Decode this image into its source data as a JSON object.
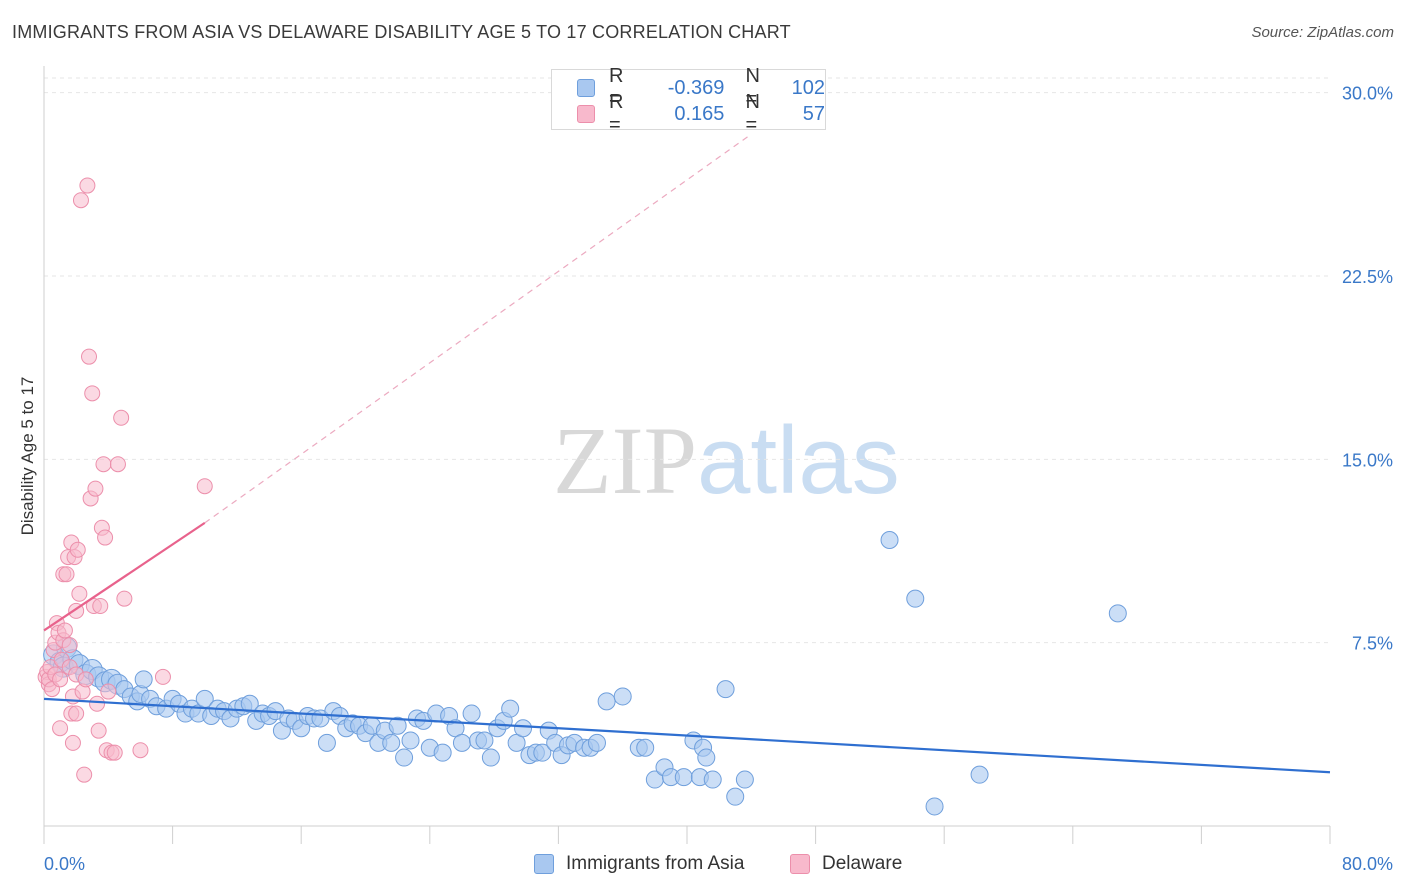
{
  "title": "IMMIGRANTS FROM ASIA VS DELAWARE DISABILITY AGE 5 TO 17 CORRELATION CHART",
  "source": "Source: ZipAtlas.com",
  "watermark": {
    "zip": "ZIP",
    "atlas": "atlas"
  },
  "legend_top": [
    {
      "r_label": "R =",
      "r_value": "-0.369",
      "n_label": "N =",
      "n_value": "102"
    },
    {
      "r_label": "R =",
      "r_value": "0.165",
      "n_label": "N =",
      "n_value": "57"
    }
  ],
  "colors": {
    "blue_fill": "#a9c8f0",
    "blue_stroke": "#6f9fdc",
    "blue_line": "#2f6fd0",
    "pink_fill": "#f8b9cc",
    "pink_stroke": "#ec8fab",
    "pink_line": "#e8628c",
    "tick_label": "#3a78c8",
    "grid": "#e6e6e6"
  },
  "chart_data": {
    "type": "scatter",
    "title": "IMMIGRANTS FROM ASIA VS DELAWARE DISABILITY AGE 5 TO 17 CORRELATION CHART",
    "xlabel": "",
    "ylabel": "Disability Age 5 to 17",
    "xlim": [
      0,
      80
    ],
    "ylim": [
      0,
      30.6
    ],
    "x_tick_labels": [
      "0.0%",
      "80.0%"
    ],
    "y_ticks": [
      7.5,
      15.0,
      22.5,
      30.0
    ],
    "y_tick_labels": [
      "7.5%",
      "15.0%",
      "22.5%",
      "30.0%"
    ],
    "grid": "horizontal dashed",
    "legend": "bottom",
    "series": [
      {
        "name": "Immigrants from Asia",
        "color": "#a9c8f0",
        "trend": {
          "x": [
            0,
            80
          ],
          "y": [
            5.2,
            2.2
          ]
        },
        "points": [
          [
            0.6,
            7.0
          ],
          [
            1.0,
            6.7
          ],
          [
            1.2,
            6.5
          ],
          [
            1.4,
            7.3
          ],
          [
            1.8,
            6.8
          ],
          [
            2.2,
            6.6
          ],
          [
            2.6,
            6.2
          ],
          [
            3.0,
            6.4
          ],
          [
            3.4,
            6.1
          ],
          [
            3.8,
            5.9
          ],
          [
            4.2,
            6.0
          ],
          [
            4.6,
            5.8
          ],
          [
            5.0,
            5.6
          ],
          [
            5.4,
            5.3
          ],
          [
            5.8,
            5.1
          ],
          [
            6.0,
            5.4
          ],
          [
            6.2,
            6.0
          ],
          [
            6.6,
            5.2
          ],
          [
            7.0,
            4.9
          ],
          [
            7.6,
            4.8
          ],
          [
            8.0,
            5.2
          ],
          [
            8.4,
            5.0
          ],
          [
            8.8,
            4.6
          ],
          [
            9.2,
            4.8
          ],
          [
            9.6,
            4.6
          ],
          [
            10.0,
            5.2
          ],
          [
            10.4,
            4.5
          ],
          [
            10.8,
            4.8
          ],
          [
            11.2,
            4.7
          ],
          [
            11.6,
            4.4
          ],
          [
            12.0,
            4.8
          ],
          [
            12.4,
            4.9
          ],
          [
            12.8,
            5.0
          ],
          [
            13.2,
            4.3
          ],
          [
            13.6,
            4.6
          ],
          [
            14.0,
            4.5
          ],
          [
            14.4,
            4.7
          ],
          [
            14.8,
            3.9
          ],
          [
            15.2,
            4.4
          ],
          [
            15.6,
            4.3
          ],
          [
            16.0,
            4.0
          ],
          [
            16.4,
            4.5
          ],
          [
            16.8,
            4.4
          ],
          [
            17.2,
            4.4
          ],
          [
            17.6,
            3.4
          ],
          [
            18.0,
            4.7
          ],
          [
            18.4,
            4.5
          ],
          [
            18.8,
            4.0
          ],
          [
            19.2,
            4.2
          ],
          [
            19.6,
            4.1
          ],
          [
            20.0,
            3.8
          ],
          [
            20.4,
            4.1
          ],
          [
            20.8,
            3.4
          ],
          [
            21.2,
            3.9
          ],
          [
            21.6,
            3.4
          ],
          [
            22.0,
            4.1
          ],
          [
            22.4,
            2.8
          ],
          [
            22.8,
            3.5
          ],
          [
            23.2,
            4.4
          ],
          [
            23.6,
            4.3
          ],
          [
            24.0,
            3.2
          ],
          [
            24.4,
            4.6
          ],
          [
            24.8,
            3.0
          ],
          [
            25.2,
            4.5
          ],
          [
            25.6,
            4.0
          ],
          [
            26.0,
            3.4
          ],
          [
            26.6,
            4.6
          ],
          [
            27.0,
            3.5
          ],
          [
            27.4,
            3.5
          ],
          [
            27.8,
            2.8
          ],
          [
            28.2,
            4.0
          ],
          [
            28.6,
            4.3
          ],
          [
            29.0,
            4.8
          ],
          [
            29.4,
            3.4
          ],
          [
            29.8,
            4.0
          ],
          [
            30.2,
            2.9
          ],
          [
            30.6,
            3.0
          ],
          [
            31.0,
            3.0
          ],
          [
            31.4,
            3.9
          ],
          [
            31.8,
            3.4
          ],
          [
            32.2,
            2.9
          ],
          [
            32.6,
            3.3
          ],
          [
            33.0,
            3.4
          ],
          [
            33.6,
            3.2
          ],
          [
            34.0,
            3.2
          ],
          [
            34.4,
            3.4
          ],
          [
            35.0,
            5.1
          ],
          [
            36.0,
            5.3
          ],
          [
            37.0,
            3.2
          ],
          [
            37.4,
            3.2
          ],
          [
            38.0,
            1.9
          ],
          [
            38.6,
            2.4
          ],
          [
            39.0,
            2.0
          ],
          [
            39.8,
            2.0
          ],
          [
            40.4,
            3.5
          ],
          [
            40.8,
            2.0
          ],
          [
            41.0,
            3.2
          ],
          [
            41.2,
            2.8
          ],
          [
            41.6,
            1.9
          ],
          [
            42.4,
            5.6
          ],
          [
            43.0,
            1.2
          ],
          [
            43.6,
            1.9
          ],
          [
            52.6,
            11.7
          ],
          [
            54.2,
            9.3
          ],
          [
            55.4,
            0.8
          ],
          [
            58.2,
            2.1
          ],
          [
            66.8,
            8.7
          ]
        ]
      },
      {
        "name": "Delaware",
        "color": "#f8b9cc",
        "trend": {
          "x": [
            0,
            10
          ],
          "y": [
            8.0,
            12.4
          ]
        },
        "trend_extended": {
          "x": [
            10,
            44
          ],
          "y": [
            12.4,
            28.3
          ]
        },
        "points": [
          [
            0.1,
            6.1
          ],
          [
            0.2,
            6.3
          ],
          [
            0.3,
            5.8
          ],
          [
            0.3,
            6.0
          ],
          [
            0.4,
            6.5
          ],
          [
            0.5,
            5.6
          ],
          [
            0.6,
            7.2
          ],
          [
            0.7,
            6.2
          ],
          [
            0.7,
            7.5
          ],
          [
            0.8,
            8.3
          ],
          [
            0.9,
            7.9
          ],
          [
            1.0,
            6.0
          ],
          [
            1.0,
            4.0
          ],
          [
            1.1,
            6.8
          ],
          [
            1.2,
            7.6
          ],
          [
            1.2,
            10.3
          ],
          [
            1.3,
            8.0
          ],
          [
            1.4,
            10.3
          ],
          [
            1.5,
            11.0
          ],
          [
            1.6,
            7.4
          ],
          [
            1.6,
            6.5
          ],
          [
            1.7,
            4.6
          ],
          [
            1.7,
            11.6
          ],
          [
            1.8,
            5.3
          ],
          [
            1.8,
            3.4
          ],
          [
            1.9,
            11.0
          ],
          [
            2.0,
            4.6
          ],
          [
            2.0,
            8.8
          ],
          [
            2.0,
            6.2
          ],
          [
            2.1,
            11.3
          ],
          [
            2.2,
            9.5
          ],
          [
            2.3,
            25.6
          ],
          [
            2.4,
            5.5
          ],
          [
            2.5,
            2.1
          ],
          [
            2.6,
            6.0
          ],
          [
            2.7,
            26.2
          ],
          [
            2.8,
            19.2
          ],
          [
            2.9,
            13.4
          ],
          [
            3.0,
            17.7
          ],
          [
            3.1,
            9.0
          ],
          [
            3.2,
            13.8
          ],
          [
            3.3,
            5.0
          ],
          [
            3.4,
            3.9
          ],
          [
            3.5,
            9.0
          ],
          [
            3.6,
            12.2
          ],
          [
            3.7,
            14.8
          ],
          [
            3.8,
            11.8
          ],
          [
            3.9,
            3.1
          ],
          [
            4.0,
            5.5
          ],
          [
            4.2,
            3.0
          ],
          [
            4.4,
            3.0
          ],
          [
            4.6,
            14.8
          ],
          [
            4.8,
            16.7
          ],
          [
            5.0,
            9.3
          ],
          [
            6.0,
            3.1
          ],
          [
            7.4,
            6.1
          ],
          [
            10.0,
            13.9
          ]
        ]
      }
    ]
  },
  "bottom_legend": [
    {
      "label": "Immigrants from Asia"
    },
    {
      "label": "Delaware"
    }
  ]
}
